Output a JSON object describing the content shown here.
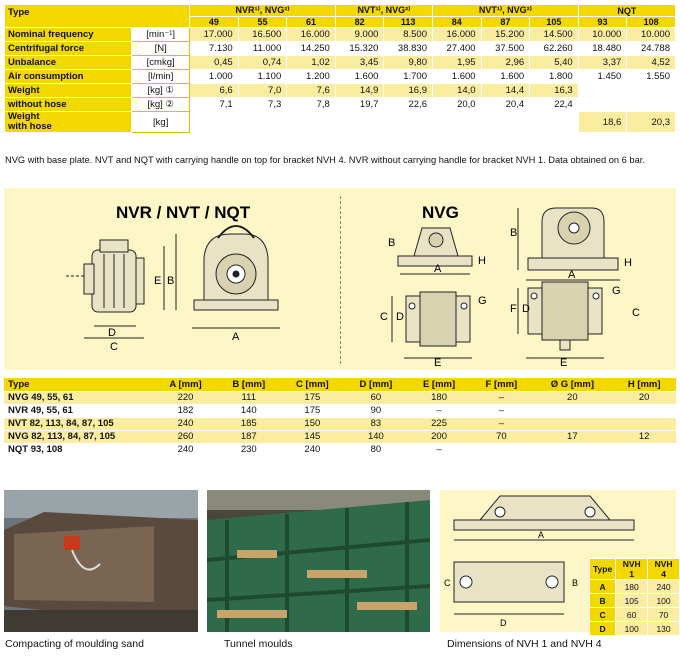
{
  "spec": {
    "type_label": "Type",
    "groups": [
      "NVR¹⁾, NVG²⁾",
      "NVT¹⁾, NVG²⁾",
      "NVT¹⁾, NVG²⁾",
      "NQT"
    ],
    "models": [
      "49",
      "55",
      "61",
      "82",
      "113",
      "84",
      "87",
      "105",
      "93",
      "108"
    ],
    "rows": [
      {
        "label": "Nominal frequency",
        "unit": "[min⁻¹]",
        "values": [
          "17.000",
          "16.500",
          "16.000",
          "9.000",
          "8.500",
          "16.000",
          "15.200",
          "14.500",
          "10.000",
          "10.000"
        ]
      },
      {
        "label": "Centrifugal force",
        "unit": "[N]",
        "values": [
          "7.130",
          "11.000",
          "14.250",
          "15.320",
          "38.830",
          "27.400",
          "37.500",
          "62.260",
          "18.480",
          "24.788"
        ]
      },
      {
        "label": "Unbalance",
        "unit": "[cmkg]",
        "values": [
          "0,45",
          "0,74",
          "1,02",
          "3,45",
          "9,80",
          "1,95",
          "2,96",
          "5,40",
          "3,37",
          "4,52"
        ]
      },
      {
        "label": "Air consumption",
        "unit": "[l/min]",
        "values": [
          "1.000",
          "1.100",
          "1.200",
          "1.600",
          "1.700",
          "1.600",
          "1.600",
          "1.800",
          "1.450",
          "1.550"
        ]
      },
      {
        "label": "Weight",
        "unit": "[kg] ①",
        "values": [
          "6,6",
          "7,0",
          "7,6",
          "14,9",
          "16,9",
          "14,0",
          "14,4",
          "16,3",
          "",
          ""
        ]
      },
      {
        "label": "without hose",
        "unit": "[kg] ②",
        "values": [
          "7,1",
          "7,3",
          "7,8",
          "19,7",
          "22,6",
          "20,0",
          "20,4",
          "22,4",
          "",
          ""
        ]
      },
      {
        "label": "Weight\nwith hose",
        "unit": "[kg]",
        "values": [
          "",
          "",
          "",
          "",
          "",
          "",
          "",
          "",
          "18,6",
          "20,3"
        ]
      }
    ],
    "note": "NVG with base plate. NVT and NQT with carrying handle on top for bracket NVH 4. NVR without carrying handle for bracket NVH 1. Data obtained on 6 bar."
  },
  "drawings": {
    "left_title": "NVR / NVT / NQT",
    "right_title": "NVG",
    "labels": {
      "A": "A",
      "B": "B",
      "C": "C",
      "D": "D",
      "E": "E",
      "F": "F",
      "G": "G",
      "H": "H"
    }
  },
  "dims": {
    "header": [
      "Type",
      "A [mm]",
      "B [mm]",
      "C [mm]",
      "D [mm]",
      "E [mm]",
      "F [mm]",
      "Ø G [mm]",
      "H [mm]"
    ],
    "rows": [
      [
        "NVG 49, 55, 61",
        "220",
        "111",
        "175",
        "60",
        "180",
        "–",
        "20",
        "20"
      ],
      [
        "NVR 49, 55, 61",
        "182",
        "140",
        "175",
        "90",
        "–",
        "–",
        "",
        ""
      ],
      [
        "NVT 82, 113, 84, 87, 105",
        "240",
        "185",
        "150",
        "83",
        "225",
        "–",
        "",
        ""
      ],
      [
        "NVG 82, 113, 84, 87, 105",
        "260",
        "187",
        "145",
        "140",
        "200",
        "70",
        "17",
        "12"
      ],
      [
        "NQT 93, 108",
        "240",
        "230",
        "240",
        "80",
        "–",
        "",
        "",
        ""
      ]
    ]
  },
  "captions": {
    "photo1": "Compacting of moulding sand",
    "photo2": "Tunnel moulds",
    "photo3": "Dimensions of NVH 1 and NVH 4"
  },
  "nvh": {
    "header": [
      "Type",
      "NVH 1",
      "NVH 4"
    ],
    "rows": [
      [
        "A",
        "180",
        "240"
      ],
      [
        "B",
        "105",
        "100"
      ],
      [
        "C",
        "60",
        "70"
      ],
      [
        "D",
        "100",
        "130"
      ]
    ]
  },
  "colors": {
    "accent": "#f3d800",
    "light": "#fbeda0",
    "drawing_bg": "#fdf6c6"
  }
}
